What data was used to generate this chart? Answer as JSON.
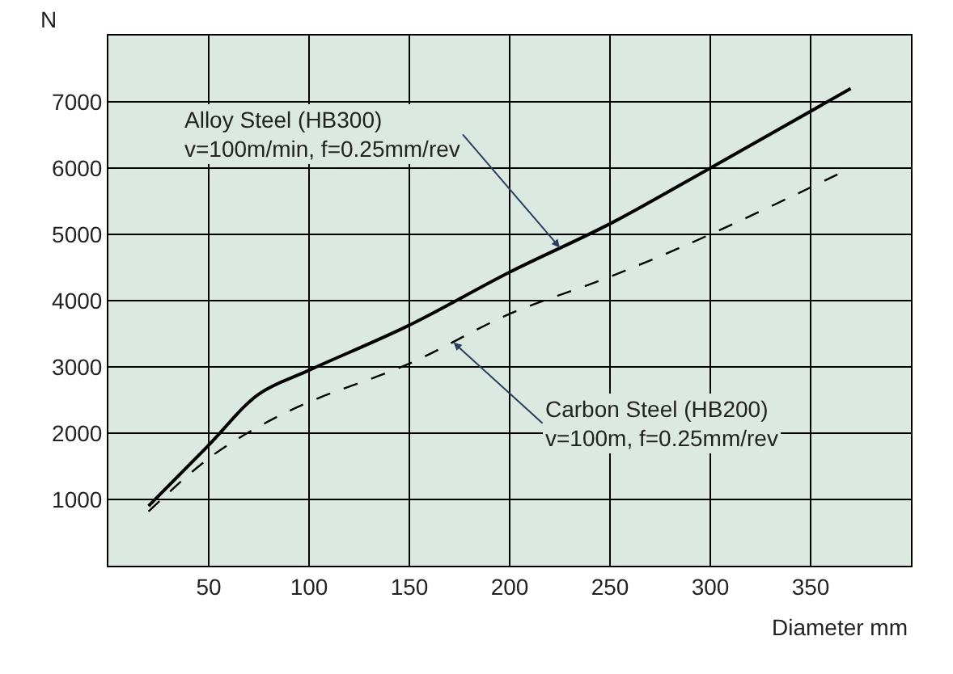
{
  "chart_data": {
    "type": "line",
    "xlabel": "Diameter mm",
    "ylabel": "N",
    "x": [
      20,
      50,
      75,
      100,
      150,
      200,
      250,
      300,
      370
    ],
    "series": [
      {
        "color": "#000000",
        "line_style": "solid",
        "values": [
          900,
          1820,
          2590,
          2950,
          3630,
          4430,
          5160,
          6000,
          7200
        ]
      },
      {
        "color": "#000000",
        "line_style": "dashed",
        "values": [
          820,
          1620,
          2100,
          2470,
          3050,
          3800,
          4360,
          5000,
          6000
        ]
      }
    ],
    "xlim": [
      0,
      400
    ],
    "xticks": [
      50,
      100,
      150,
      200,
      250,
      300,
      350
    ],
    "ylim": [
      0,
      8000
    ],
    "yticks": [
      1000,
      2000,
      3000,
      4000,
      5000,
      6000,
      7000
    ],
    "grid": true,
    "marker": "none",
    "annotations": [
      {
        "text": "Alloy Steel (HB300)\nv=100m/min, f=0.25mm/rev",
        "x": 225,
        "y": 4800
      },
      {
        "text": "Carbon Steel (HB200)\nv=100m, f=0.25mm/rev",
        "x": 172,
        "y": 3370
      }
    ]
  }
}
